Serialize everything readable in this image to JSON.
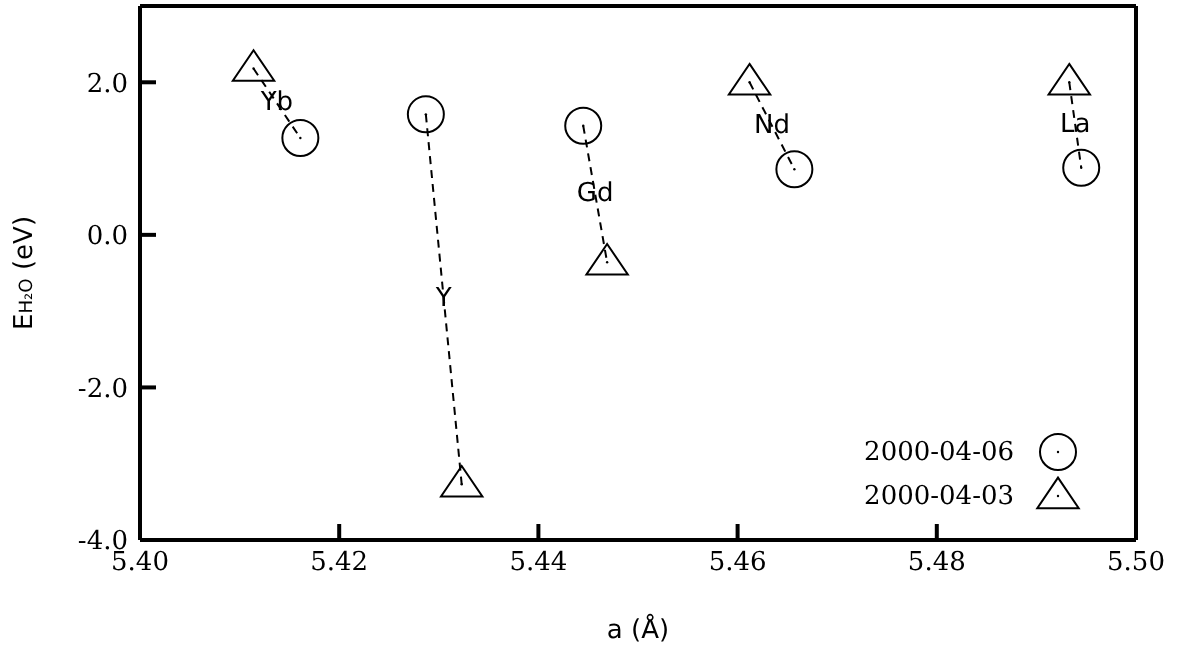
{
  "chart_data": {
    "type": "scatter",
    "xlabel": "a (Å)",
    "ylabel": "E$_{H₂O}$ (eV)",
    "xlim": [
      5.4,
      5.5
    ],
    "xticks": [
      {
        "value": 5.4,
        "label": "5.40"
      },
      {
        "value": 5.42,
        "label": "5.42"
      },
      {
        "value": 5.44,
        "label": "5.44"
      },
      {
        "value": 5.46,
        "label": "5.46"
      },
      {
        "value": 5.48,
        "label": "5.48"
      },
      {
        "value": 5.5,
        "label": "5.50"
      }
    ],
    "ylim": [
      -4.0,
      3.0
    ],
    "yticks": [
      {
        "value": -4.0,
        "label": "-4.0"
      },
      {
        "value": -2.0,
        "label": "-2.0"
      },
      {
        "value": 0.0,
        "label": "0.0"
      },
      {
        "value": 2.0,
        "label": "2.0"
      }
    ],
    "grid": false,
    "legend": "bottom right",
    "series": [
      {
        "type": "line",
        "color": "#000000",
        "line_style": "dashed",
        "marker": "none",
        "x": [
          5.4114,
          5.4161
        ],
        "values": [
          2.18,
          1.27
        ]
      },
      {
        "type": "line",
        "color": "#000000",
        "line_style": "dashed",
        "marker": "none",
        "x": [
          5.4287,
          5.4323
        ],
        "values": [
          1.58,
          -3.27
        ]
      },
      {
        "type": "line",
        "color": "#000000",
        "line_style": "dashed",
        "marker": "none",
        "x": [
          5.4445,
          5.4469
        ],
        "values": [
          1.43,
          -0.36
        ]
      },
      {
        "type": "line",
        "color": "#000000",
        "line_style": "dashed",
        "marker": "none",
        "x": [
          5.4612,
          5.4657
        ],
        "values": [
          2.0,
          0.86
        ]
      },
      {
        "type": "line",
        "color": "#000000",
        "line_style": "dashed",
        "marker": "none",
        "x": [
          5.4933,
          5.4945
        ],
        "values": [
          2.0,
          0.88
        ]
      },
      {
        "name": "2000-04-06",
        "color": "#000000",
        "marker": "circle",
        "x": [
          5.4161,
          5.4287,
          5.4445,
          5.4657,
          5.4945
        ],
        "values": [
          1.27,
          1.58,
          1.43,
          0.86,
          0.88
        ]
      },
      {
        "name": "2000-04-03",
        "color": "#000000",
        "marker": "triangle",
        "x": [
          5.4114,
          5.4323,
          5.4469,
          5.4612,
          5.4933
        ],
        "values": [
          2.18,
          -3.27,
          -0.36,
          2.0,
          2.0
        ]
      }
    ],
    "annotations": [
      {
        "text": "Yb",
        "x": 5.41375,
        "y": 1.725
      },
      {
        "text": "Y",
        "x": 5.4305,
        "y": -0.845
      },
      {
        "text": "Gd",
        "x": 5.4457,
        "y": 0.535
      },
      {
        "text": "Nd",
        "x": 5.46345,
        "y": 1.43
      },
      {
        "text": "La",
        "x": 5.4939,
        "y": 1.44
      }
    ]
  }
}
